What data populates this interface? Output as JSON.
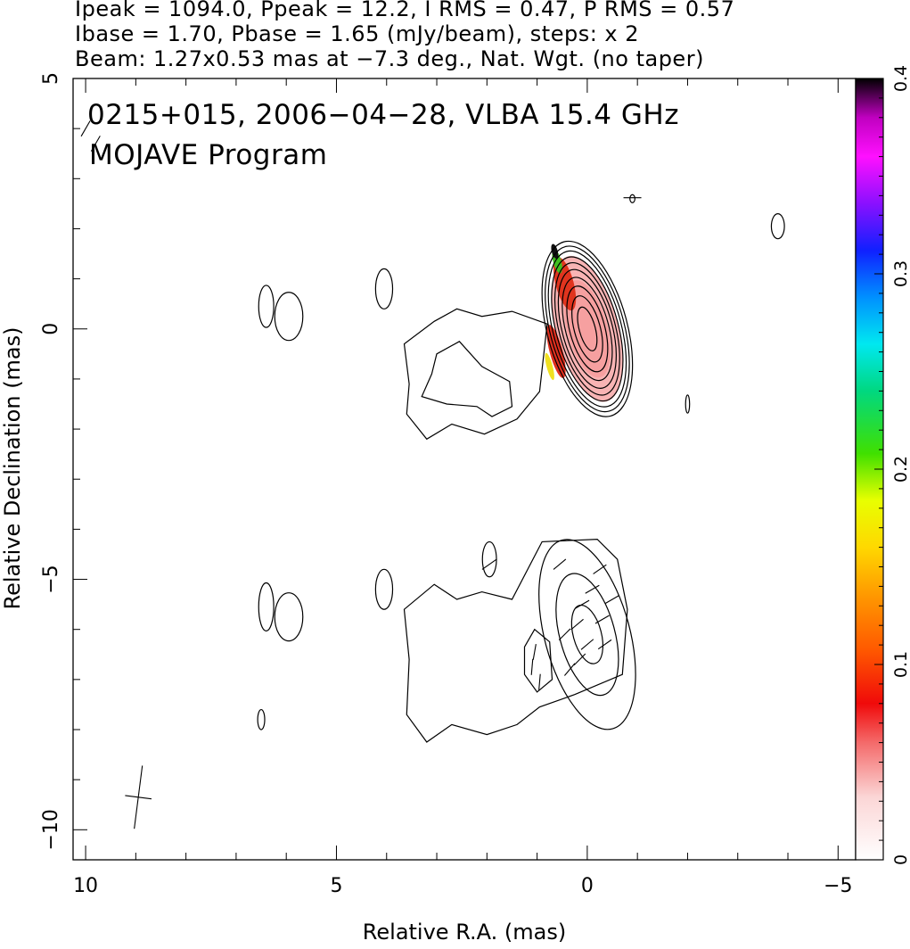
{
  "header": {
    "line1": "Ipeak = 1094.0, Ppeak = 12.2, I RMS = 0.47, P RMS = 0.57",
    "line2": "Ibase = 1.70, Pbase = 1.65 (mJy/beam), steps: x 2",
    "line3": "Beam: 1.27x0.53 mas at −7.3 deg., Nat. Wgt. (no taper)"
  },
  "plot": {
    "source_label": "0215+015, 2006−04−28, VLBA 15.4 GHz",
    "program_label": "MOJAVE Program"
  },
  "colorbar": {
    "ticks": [
      0,
      0.1,
      0.2,
      0.3,
      0.4
    ]
  },
  "chart_data": {
    "type": "contour",
    "xlabel": "Relative R.A. (mas)",
    "ylabel": "Relative Declination (mas)",
    "xlim": [
      10.25,
      -5.35
    ],
    "ylim": [
      -10.6,
      5
    ],
    "x_ticks": [
      10,
      5,
      0,
      -5
    ],
    "y_ticks": [
      5,
      0,
      -5,
      -10
    ],
    "x_tick_labels": [
      "10",
      "5",
      "0",
      "−5"
    ],
    "y_tick_labels": [
      "5",
      "0",
      "−5",
      "−10"
    ],
    "colorbar": {
      "range": [
        0,
        0.4
      ],
      "tick_labels": [
        "0",
        "0.1",
        "0.2",
        "0.3",
        "0.4"
      ]
    },
    "upper_panel": {
      "peak": [
        0,
        0
      ],
      "core_contours": [
        {
          "rx": 0.16,
          "ry": 0.45
        },
        {
          "rx": 0.26,
          "ry": 0.68
        },
        {
          "rx": 0.35,
          "ry": 0.88
        },
        {
          "rx": 0.43,
          "ry": 1.06
        },
        {
          "rx": 0.5,
          "ry": 1.22
        },
        {
          "rx": 0.56,
          "ry": 1.36
        },
        {
          "rx": 0.62,
          "ry": 1.48
        },
        {
          "rx": 0.68,
          "ry": 1.6
        },
        {
          "rx": 0.74,
          "ry": 1.7
        },
        {
          "rx": 0.8,
          "ry": 1.8
        }
      ],
      "core_angle_deg": -15,
      "jet_outer": [
        [
          0.8,
          0.1
        ],
        [
          1.5,
          0.35
        ],
        [
          2.1,
          0.25
        ],
        [
          2.6,
          0.4
        ],
        [
          3.05,
          0.15
        ],
        [
          3.65,
          -0.3
        ],
        [
          3.55,
          -1.1
        ],
        [
          3.6,
          -1.7
        ],
        [
          3.2,
          -2.2
        ],
        [
          2.7,
          -1.9
        ],
        [
          2.05,
          -2.1
        ],
        [
          1.4,
          -1.8
        ],
        [
          0.95,
          -1.25
        ],
        [
          0.8,
          0.1
        ]
      ],
      "jet_inner": [
        [
          2.55,
          -0.25
        ],
        [
          3.0,
          -0.5
        ],
        [
          3.1,
          -0.9
        ],
        [
          3.3,
          -1.35
        ],
        [
          2.8,
          -1.5
        ],
        [
          2.2,
          -1.55
        ],
        [
          1.9,
          -1.75
        ],
        [
          1.5,
          -1.55
        ],
        [
          1.55,
          -1.05
        ],
        [
          2.1,
          -0.75
        ],
        [
          2.55,
          -0.25
        ]
      ],
      "islands": [
        {
          "x": 6.4,
          "y": 0.45,
          "rx": 0.15,
          "ry": 0.42
        },
        {
          "x": 5.95,
          "y": 0.25,
          "rx": 0.28,
          "ry": 0.48
        },
        {
          "x": 4.05,
          "y": 0.8,
          "rx": 0.17,
          "ry": 0.4
        },
        {
          "x": -2.0,
          "y": -1.5,
          "rx": 0.04,
          "ry": 0.18
        },
        {
          "x": -0.9,
          "y": 2.6,
          "rx": 0.05,
          "ry": 0.08
        },
        {
          "x": -3.8,
          "y": 2.05,
          "rx": 0.13,
          "ry": 0.25
        }
      ],
      "polarization_patches": [
        {
          "x": 0.45,
          "y": 0.9,
          "rx": 0.18,
          "ry": 0.55,
          "color": "#e0341e"
        },
        {
          "x": 0.6,
          "y": 1.35,
          "rx": 0.08,
          "ry": 0.25,
          "color": "#40c020"
        },
        {
          "x": 0.65,
          "y": 1.55,
          "rx": 0.06,
          "ry": 0.15,
          "color": "#101010"
        },
        {
          "x": 0.62,
          "y": -0.45,
          "rx": 0.13,
          "ry": 0.55,
          "color": "#e02f1e"
        },
        {
          "x": 0.75,
          "y": -0.75,
          "rx": 0.06,
          "ry": 0.28,
          "color": "#f0e020"
        }
      ]
    },
    "lower_panel": {
      "peak": [
        0,
        -6.1
      ],
      "contours": [
        {
          "rx": 0.85,
          "ry": 1.95
        },
        {
          "rx": 0.55,
          "ry": 1.25
        },
        {
          "rx": 0.28,
          "ry": 0.6
        }
      ],
      "jet_outer": [
        [
          0.9,
          -4.25
        ],
        [
          1.5,
          -5.4
        ],
        [
          2.1,
          -5.25
        ],
        [
          2.6,
          -5.4
        ],
        [
          3.05,
          -5.1
        ],
        [
          3.65,
          -5.6
        ],
        [
          3.55,
          -6.6
        ],
        [
          3.6,
          -7.7
        ],
        [
          3.2,
          -8.25
        ],
        [
          2.7,
          -7.9
        ],
        [
          2.0,
          -8.1
        ],
        [
          1.4,
          -7.9
        ],
        [
          0.95,
          -7.55
        ],
        [
          0.25,
          -7.3
        ],
        [
          -0.7,
          -6.9
        ],
        [
          -0.8,
          -5.6
        ],
        [
          -0.6,
          -4.6
        ],
        [
          -0.2,
          -4.2
        ],
        [
          0.9,
          -4.25
        ]
      ],
      "islands": [
        {
          "x": 6.4,
          "y": -5.55,
          "rx": 0.15,
          "ry": 0.48
        },
        {
          "x": 5.95,
          "y": -5.75,
          "rx": 0.28,
          "ry": 0.48
        },
        {
          "x": 4.05,
          "y": -5.2,
          "rx": 0.17,
          "ry": 0.4
        },
        {
          "x": 1.95,
          "y": -4.6,
          "rx": 0.14,
          "ry": 0.35
        },
        {
          "x": 6.5,
          "y": -7.8,
          "rx": 0.07,
          "ry": 0.2
        }
      ]
    },
    "beam": {
      "x": 8.95,
      "y": -9.35,
      "major_mas": 1.27,
      "minor_mas": 0.53,
      "pa_deg": -7.3
    }
  }
}
